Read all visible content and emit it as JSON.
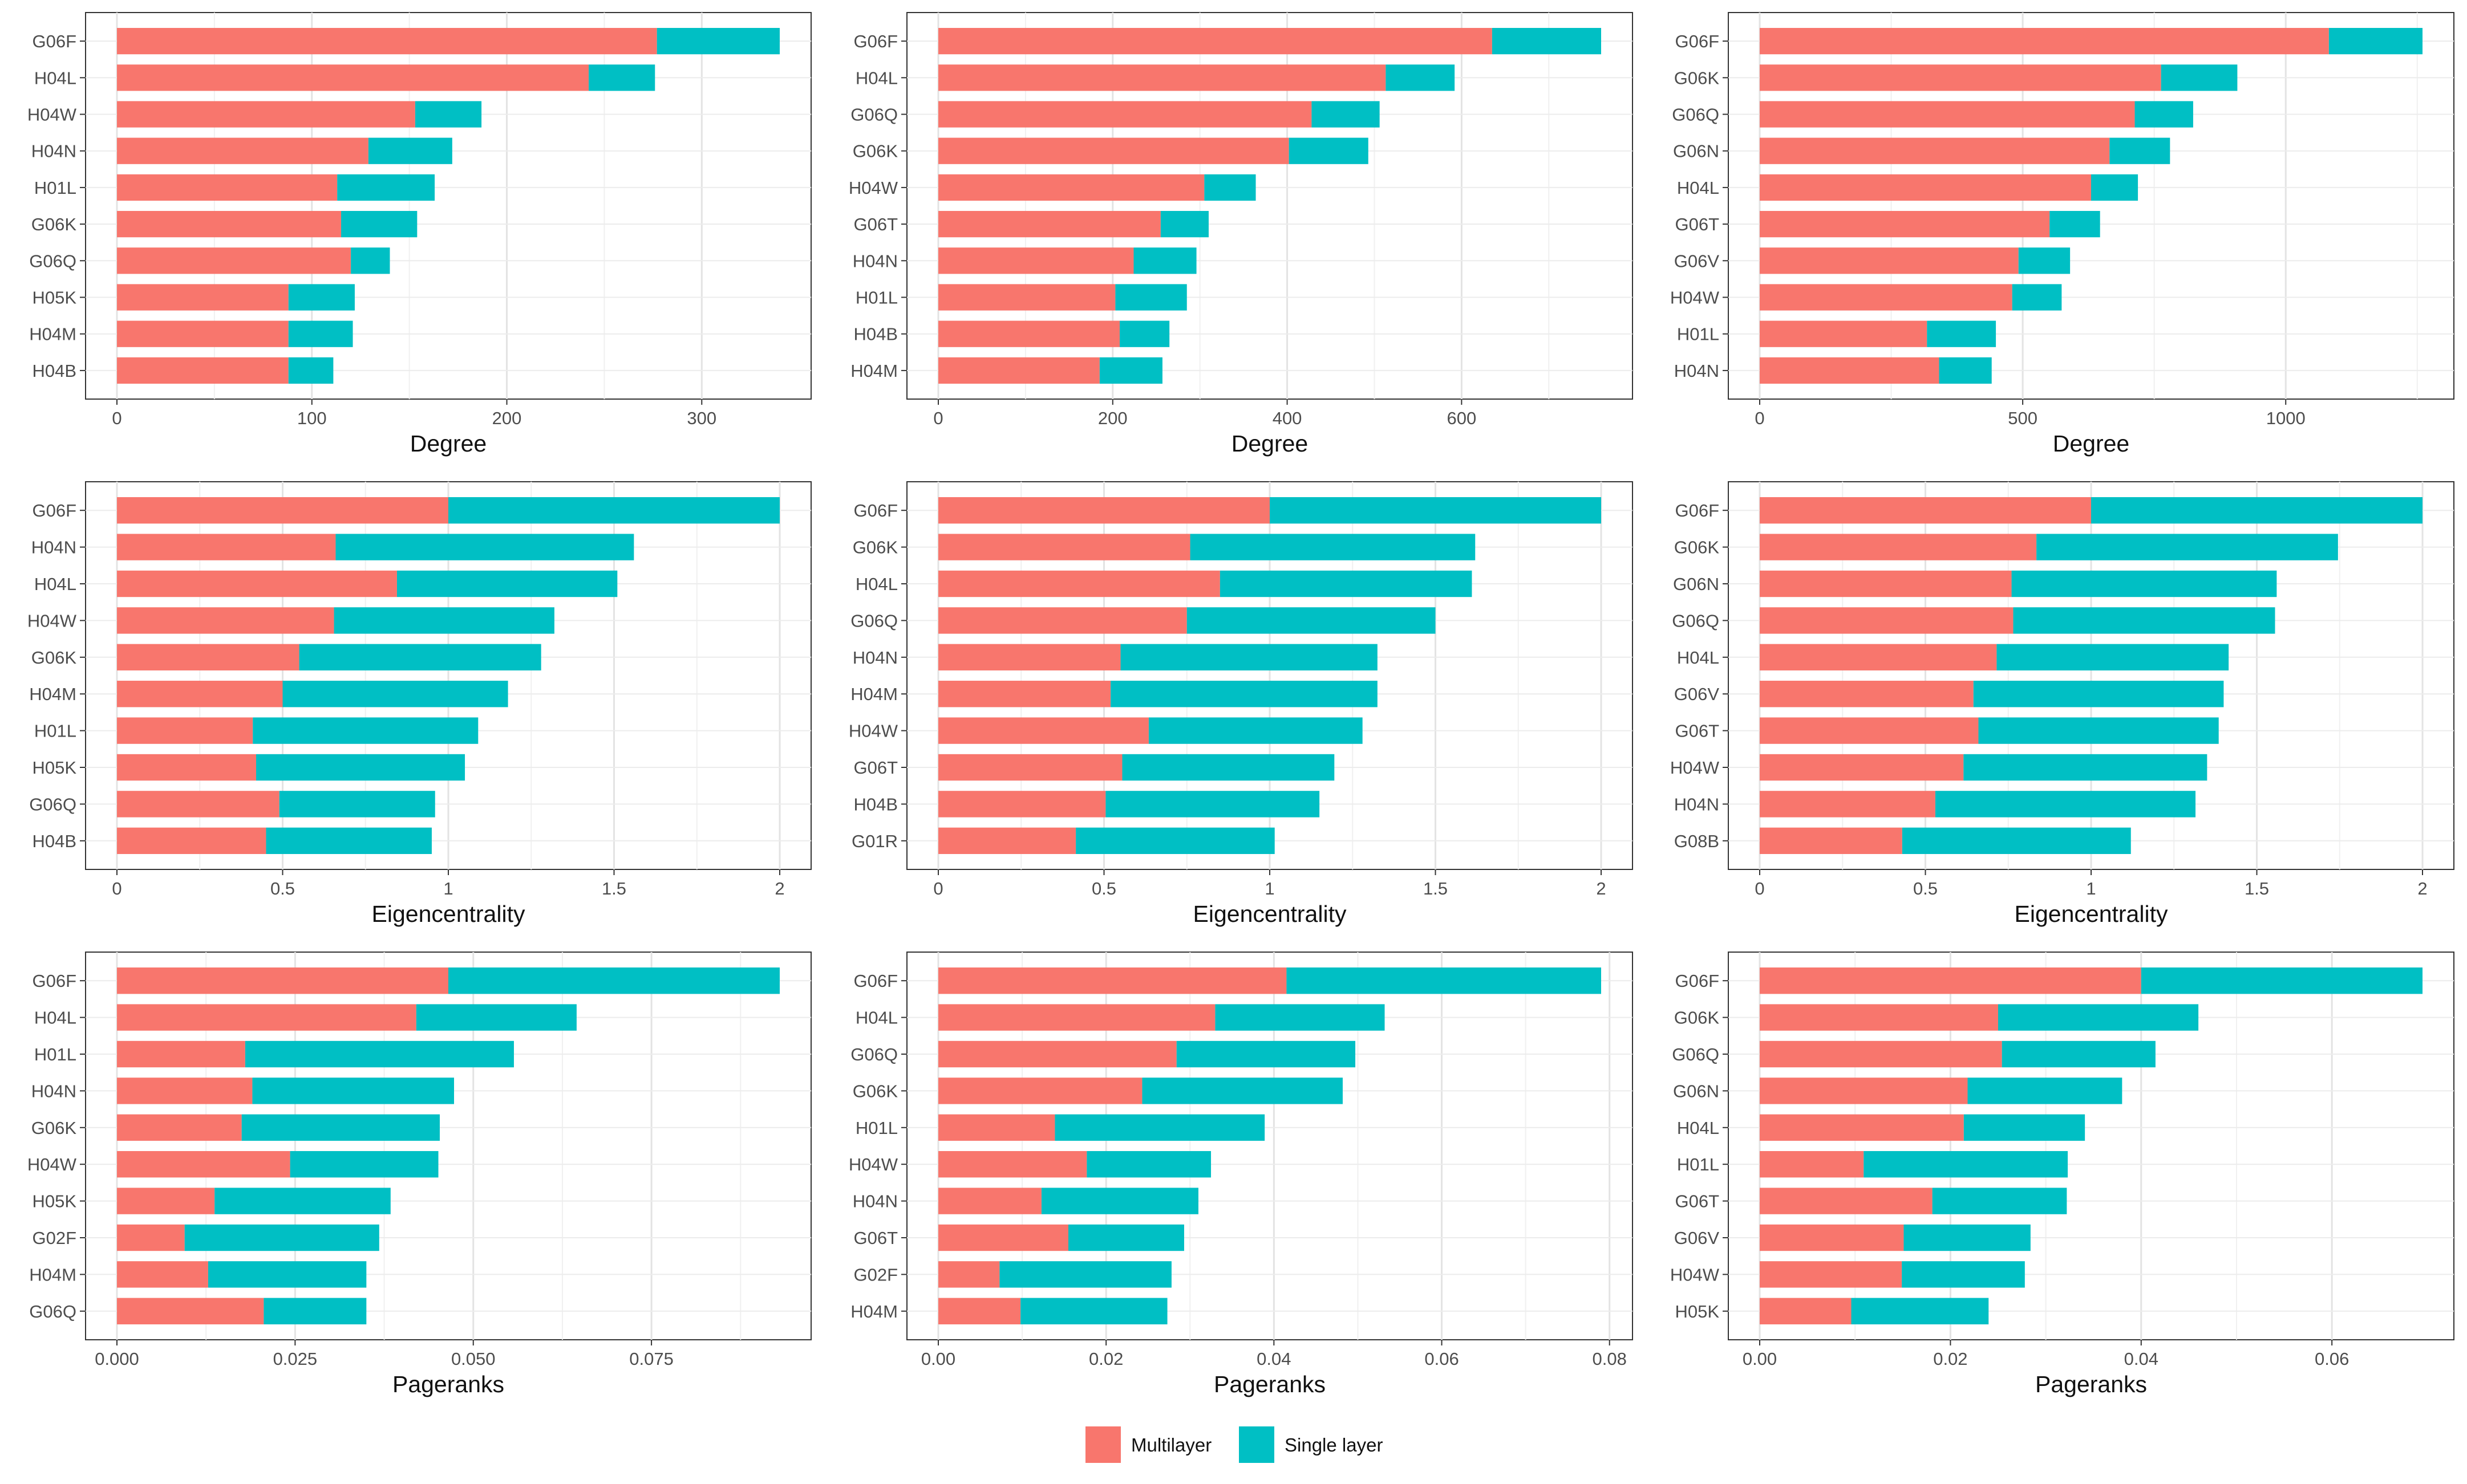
{
  "legend": {
    "items": [
      {
        "label": "Multilayer",
        "color": "#F8766D"
      },
      {
        "label": "Single layer",
        "color": "#00BFC4"
      }
    ]
  },
  "chart_data": [
    {
      "type": "bar",
      "orientation": "horizontal",
      "stacked": true,
      "xlabel": "Degree",
      "xlim": [
        0,
        340
      ],
      "xticks": [
        0,
        100,
        200,
        300
      ],
      "categories": [
        "G06F",
        "H04L",
        "H04W",
        "H04N",
        "H01L",
        "G06K",
        "G06Q",
        "H05K",
        "H04M",
        "H04B"
      ],
      "series": [
        {
          "name": "Multilayer",
          "values": [
            277,
            242,
            153,
            129,
            113,
            115,
            120,
            88,
            88,
            88
          ]
        },
        {
          "name": "Single layer",
          "values": [
            63,
            34,
            34,
            43,
            50,
            39,
            20,
            34,
            33,
            23
          ]
        }
      ]
    },
    {
      "type": "bar",
      "orientation": "horizontal",
      "stacked": true,
      "xlabel": "Degree",
      "xlim": [
        0,
        760
      ],
      "xticks": [
        0,
        200,
        400,
        600
      ],
      "categories": [
        "G06F",
        "H04L",
        "G06Q",
        "G06K",
        "H04W",
        "G06T",
        "H04N",
        "H01L",
        "H04B",
        "H04M"
      ],
      "series": [
        {
          "name": "Multilayer",
          "values": [
            635,
            513,
            428,
            402,
            305,
            255,
            224,
            203,
            208,
            185
          ]
        },
        {
          "name": "Single layer",
          "values": [
            125,
            79,
            78,
            91,
            59,
            55,
            72,
            82,
            57,
            72
          ]
        }
      ]
    },
    {
      "type": "bar",
      "orientation": "horizontal",
      "stacked": true,
      "xlabel": "Degree",
      "xlim": [
        0,
        1260
      ],
      "xticks": [
        0,
        500,
        1000
      ],
      "categories": [
        "G06F",
        "G06K",
        "G06Q",
        "G06N",
        "H04L",
        "G06T",
        "G06V",
        "H04W",
        "H01L",
        "H04N"
      ],
      "series": [
        {
          "name": "Multilayer",
          "values": [
            1082,
            763,
            713,
            665,
            630,
            551,
            492,
            480,
            318,
            341
          ]
        },
        {
          "name": "Single layer",
          "values": [
            178,
            145,
            111,
            115,
            89,
            96,
            98,
            94,
            131,
            100
          ]
        }
      ]
    },
    {
      "type": "bar",
      "orientation": "horizontal",
      "stacked": true,
      "xlabel": "Eigencentrality",
      "xlim": [
        0,
        2.0
      ],
      "xticks": [
        0.0,
        0.5,
        1.0,
        1.5,
        2.0
      ],
      "categories": [
        "G06F",
        "H04N",
        "H04L",
        "H04W",
        "G06K",
        "H04M",
        "H01L",
        "H05K",
        "G06Q",
        "H04B"
      ],
      "series": [
        {
          "name": "Multilayer",
          "values": [
            1.0,
            0.66,
            0.845,
            0.655,
            0.55,
            0.5,
            0.41,
            0.42,
            0.49,
            0.45
          ]
        },
        {
          "name": "Single layer",
          "values": [
            1.0,
            0.9,
            0.665,
            0.665,
            0.73,
            0.68,
            0.68,
            0.63,
            0.47,
            0.5
          ]
        }
      ]
    },
    {
      "type": "bar",
      "orientation": "horizontal",
      "stacked": true,
      "xlabel": "Eigencentrality",
      "xlim": [
        0,
        2.0
      ],
      "xticks": [
        0.0,
        0.5,
        1.0,
        1.5,
        2.0
      ],
      "categories": [
        "G06F",
        "G06K",
        "H04L",
        "G06Q",
        "H04N",
        "H04M",
        "H04W",
        "G06T",
        "H04B",
        "G01R"
      ],
      "series": [
        {
          "name": "Multilayer",
          "values": [
            1.0,
            0.76,
            0.85,
            0.75,
            0.55,
            0.52,
            0.635,
            0.555,
            0.505,
            0.415
          ]
        },
        {
          "name": "Single layer",
          "values": [
            1.0,
            0.86,
            0.76,
            0.75,
            0.775,
            0.805,
            0.645,
            0.64,
            0.645,
            0.6
          ]
        }
      ]
    },
    {
      "type": "bar",
      "orientation": "horizontal",
      "stacked": true,
      "xlabel": "Eigencentrality",
      "xlim": [
        0,
        2.0
      ],
      "xticks": [
        0.0,
        0.5,
        1.0,
        1.5,
        2.0
      ],
      "categories": [
        "G06F",
        "G06K",
        "G06N",
        "G06Q",
        "H04L",
        "G06V",
        "G06T",
        "H04W",
        "H04N",
        "G08B"
      ],
      "series": [
        {
          "name": "Multilayer",
          "values": [
            1.0,
            0.835,
            0.76,
            0.765,
            0.715,
            0.645,
            0.66,
            0.615,
            0.53,
            0.43
          ]
        },
        {
          "name": "Single layer",
          "values": [
            1.0,
            0.91,
            0.8,
            0.79,
            0.7,
            0.755,
            0.725,
            0.735,
            0.785,
            0.69
          ]
        }
      ]
    },
    {
      "type": "bar",
      "orientation": "horizontal",
      "stacked": true,
      "xlabel": "Pageranks",
      "xlim": [
        0,
        0.093
      ],
      "xticks": [
        0.0,
        0.025,
        0.05,
        0.075
      ],
      "tick_labels": [
        "0.000",
        "0.025",
        "0.050",
        "0.075"
      ],
      "categories": [
        "G06F",
        "H04L",
        "H01L",
        "H04N",
        "G06K",
        "H04W",
        "H05K",
        "G02F",
        "H04M",
        "G06Q"
      ],
      "series": [
        {
          "name": "Multilayer",
          "values": [
            0.0465,
            0.042,
            0.018,
            0.019,
            0.0175,
            0.0243,
            0.0137,
            0.0095,
            0.0128,
            0.0206
          ]
        },
        {
          "name": "Single layer",
          "values": [
            0.0465,
            0.0225,
            0.0377,
            0.0283,
            0.0278,
            0.0208,
            0.0247,
            0.0273,
            0.0222,
            0.0144
          ]
        }
      ]
    },
    {
      "type": "bar",
      "orientation": "horizontal",
      "stacked": true,
      "xlabel": "Pageranks",
      "xlim": [
        0,
        0.079
      ],
      "xticks": [
        0.0,
        0.02,
        0.04,
        0.06,
        0.08
      ],
      "tick_labels": [
        "0.00",
        "0.02",
        "0.04",
        "0.06",
        "0.08"
      ],
      "categories": [
        "G06F",
        "H04L",
        "G06Q",
        "G06K",
        "H01L",
        "H04W",
        "H04N",
        "G06T",
        "G02F",
        "H04M"
      ],
      "series": [
        {
          "name": "Multilayer",
          "values": [
            0.0415,
            0.033,
            0.0284,
            0.0243,
            0.0139,
            0.0177,
            0.0123,
            0.0155,
            0.0073,
            0.0098
          ]
        },
        {
          "name": "Single layer",
          "values": [
            0.0375,
            0.0202,
            0.0213,
            0.0239,
            0.025,
            0.0148,
            0.0187,
            0.0138,
            0.0205,
            0.0175
          ]
        }
      ]
    },
    {
      "type": "bar",
      "orientation": "horizontal",
      "stacked": true,
      "xlabel": "Pageranks",
      "xlim": [
        0,
        0.0695
      ],
      "xticks": [
        0.0,
        0.02,
        0.04,
        0.06
      ],
      "tick_labels": [
        "0.00",
        "0.02",
        "0.04",
        "0.06"
      ],
      "categories": [
        "G06F",
        "G06K",
        "G06Q",
        "G06N",
        "H04L",
        "H01L",
        "G06T",
        "G06V",
        "H04W",
        "H05K"
      ],
      "series": [
        {
          "name": "Multilayer",
          "values": [
            0.04,
            0.025,
            0.0254,
            0.0218,
            0.0214,
            0.0109,
            0.0181,
            0.0151,
            0.0149,
            0.0096
          ]
        },
        {
          "name": "Single layer",
          "values": [
            0.0295,
            0.021,
            0.0161,
            0.0162,
            0.0127,
            0.0214,
            0.0141,
            0.0133,
            0.0129,
            0.0144
          ]
        }
      ]
    }
  ]
}
